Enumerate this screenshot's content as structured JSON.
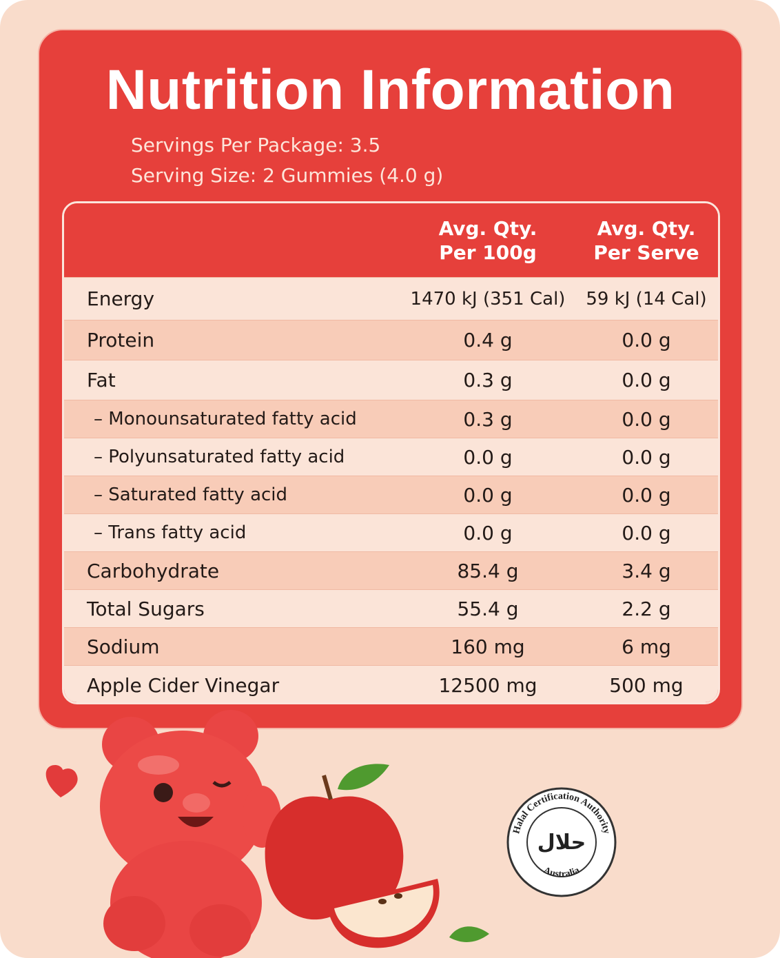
{
  "header": {
    "title": "Nutrition Information",
    "servings_per_package": "Servings Per Package: 3.5",
    "serving_size": "Serving Size: 2 Gummies (4.0 g)"
  },
  "table": {
    "columns": [
      "Avg. Qty.\nPer 100g",
      "Avg. Qty.\nPer Serve"
    ],
    "rows": [
      [
        "Energy",
        "1470 kJ (351 Cal)",
        "59 kJ (14 Cal)"
      ],
      [
        "Protein",
        "0.4 g",
        "0.0 g"
      ],
      [
        "Fat",
        "0.3 g",
        "0.0 g"
      ],
      [
        "– Monounsaturated fatty acid",
        "0.3 g",
        "0.0 g"
      ],
      [
        "– Polyunsaturated fatty acid",
        "0.0 g",
        "0.0 g"
      ],
      [
        "– Saturated fatty acid",
        "0.0 g",
        "0.0 g"
      ],
      [
        "– Trans fatty acid",
        "0.0 g",
        "0.0 g"
      ],
      [
        "Carbohydrate",
        "85.4 g",
        "3.4 g"
      ],
      [
        "Total Sugars",
        "55.4 g",
        "2.2 g"
      ],
      [
        "Sodium",
        "160 mg",
        "6 mg"
      ],
      [
        "Apple Cider Vinegar",
        "12500 mg",
        "500 mg"
      ]
    ]
  },
  "badge": {
    "ring_top": "Halal Certification Authority",
    "ring_bottom": "Australia",
    "center": "حلال"
  }
}
